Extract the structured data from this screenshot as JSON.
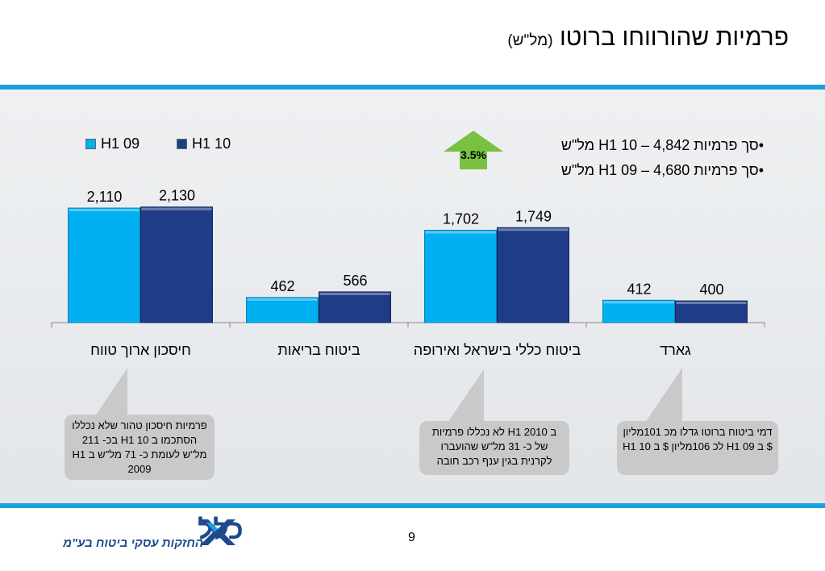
{
  "slide": {
    "title": "פרמיות שהורווחו ברוטו",
    "title_unit": "(מל\"ש)",
    "page_number": "9",
    "colors": {
      "accent_bar": "#1a9fe0",
      "h1_09": "#00b0f0",
      "h1_10": "#1f3c88",
      "growth_arrow": "#7ac142"
    }
  },
  "legend": {
    "items": [
      {
        "label": "H1 09",
        "color": "#00b0f0"
      },
      {
        "label": "H1 10",
        "color": "#1f3c88"
      }
    ]
  },
  "summary": {
    "line1": "•סך פרמיות H1 10 – 4,842 מל\"ש",
    "line2": "•סך פרמיות H1 09 – 4,680 מל\"ש"
  },
  "growth": {
    "label": "3.5%"
  },
  "notes": {
    "note1": "פרמיות חיסכון טהור שלא נכללו הסתכמו ב H1 10 בכ- 211 מל\"ש לעומת כ- 71 מל\"ש ב H1 2009",
    "note2": "ב H1 2010 לא נכללו פרמיות של כ- 31 מל\"ש שהועברו לקרנית בגין ענף רכב חובה",
    "note3": "דמי ביטוח ברוטו גדלו מכ 101מליון $ ב H1 09 לכ 106מליון $ ב H1 10"
  },
  "logo": {
    "name": "כלל",
    "tagline": "החזקות עסקי ביטוח בע\"מ"
  },
  "chart_data": {
    "type": "bar",
    "categories": [
      "חיסכון ארוך טווח",
      "ביטוח בריאות",
      "ביטוח כללי בישראל ואירופה",
      "גארד"
    ],
    "series": [
      {
        "name": "H1 09",
        "values": [
          2110,
          462,
          1702,
          412
        ],
        "labels": [
          "2,110",
          "462",
          "1,702",
          "412"
        ],
        "color": "#00b0f0"
      },
      {
        "name": "H1 10",
        "values": [
          2130,
          566,
          1749,
          400
        ],
        "labels": [
          "2,130",
          "566",
          "1,749",
          "400"
        ],
        "color": "#1f3c88"
      }
    ],
    "ylim": [
      0,
      2500
    ],
    "grid": false,
    "legend_position": "top-left"
  }
}
